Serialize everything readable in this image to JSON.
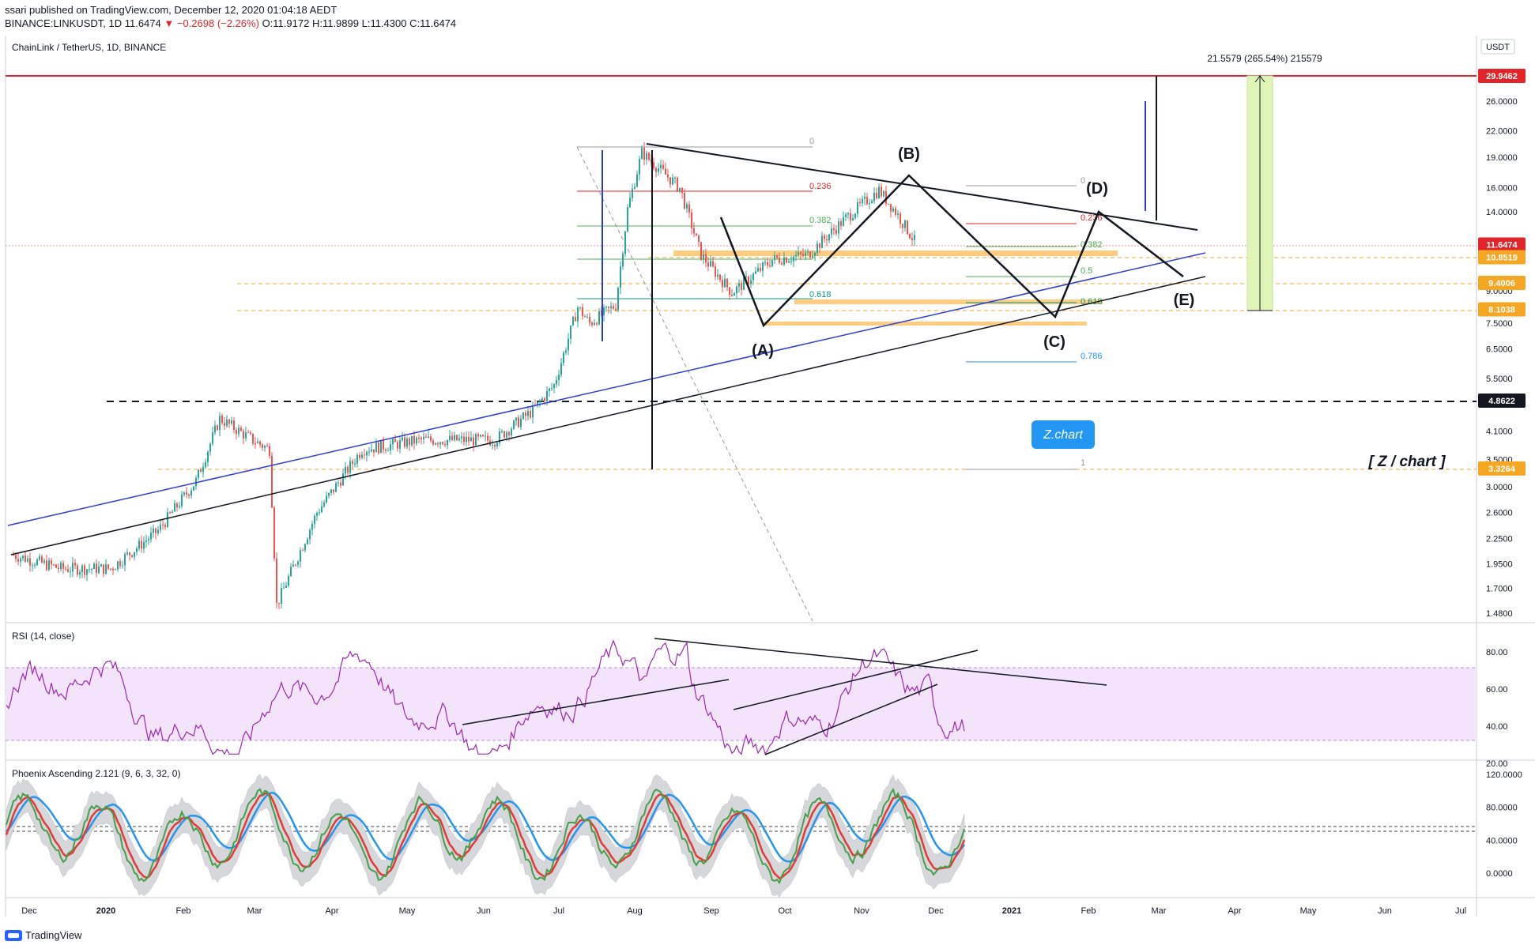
{
  "header": {
    "publisher": "ssari published on TradingView.com, December 12, 2020 01:04:18 AEDT",
    "ticker": "BINANCE:LINKUSDT, 1D",
    "last": "11.6474",
    "change": "▼ −0.2698 (−2.26%)",
    "open": "O:11.9172",
    "high": "H:11.9899",
    "low": "L:11.4300",
    "close": "C:11.6474"
  },
  "main_pane": {
    "title": "ChainLink / TetherUS, 1D, BINANCE",
    "currency": "USDT",
    "measure_label": "21.5579 (265.54%) 215579",
    "zchart_button": "Z.chart",
    "watermark": "[ Z / chart ]",
    "wave_labels": [
      "(A)",
      "(B)",
      "(C)",
      "(D)",
      "(E)"
    ],
    "fib_labels": [
      "0",
      "0.236",
      "0.382",
      "0.5",
      "0.618",
      "1"
    ],
    "fib2_labels": [
      "0",
      "0.236",
      "0.382",
      "0.5",
      "0.618",
      "0.786",
      "1"
    ],
    "price_badges": [
      {
        "value": "29.9462",
        "color": "#e0262a"
      },
      {
        "value": "11.6474",
        "color": "#e0262a"
      },
      {
        "value": "10.8519",
        "color": "#f5a623"
      },
      {
        "value": "9.4006",
        "color": "#f5a623"
      },
      {
        "value": "8.1038",
        "color": "#f5a623"
      },
      {
        "value": "4.8622",
        "color": "#131722"
      },
      {
        "value": "3.3264",
        "color": "#f5a623"
      }
    ]
  },
  "rsi_pane": {
    "title": "RSI (14, close)"
  },
  "phoenix_pane": {
    "title": "Phoenix Ascending 2.121 (9, 6, 3, 32, 0)"
  },
  "chart_data": [
    {
      "type": "line",
      "title": "ChainLink / TetherUS, 1D, BINANCE",
      "series": [
        {
          "name": "",
          "x": [
            "2019-11-25",
            "2019-12-15",
            "2020-01-05",
            "2020-01-25",
            "2020-02-10",
            "2020-02-20",
            "2020-03-05",
            "2020-03-12",
            "2020-03-15",
            "2020-04-01",
            "2020-04-20",
            "2020-05-15",
            "2020-06-15",
            "2020-07-01",
            "2020-07-10",
            "2020-07-20",
            "2020-07-25",
            "2020-08-05",
            "2020-08-10",
            "2020-08-16",
            "2020-09-01",
            "2020-09-10",
            "2020-09-23",
            "2020-10-10",
            "2020-10-25",
            "2020-11-10",
            "2020-11-24",
            "2020-12-01",
            "2020-12-10"
          ],
          "values": [
            2.05,
            1.9,
            1.9,
            2.35,
            3.1,
            4.4,
            3.9,
            3.7,
            1.55,
            2.6,
            3.7,
            3.9,
            3.9,
            4.6,
            5.3,
            8.2,
            7.5,
            8.3,
            14.2,
            19.5,
            16.0,
            11.0,
            8.9,
            10.7,
            11.0,
            13.5,
            15.8,
            14.0,
            11.65
          ]
        }
      ],
      "ylabels": [
        "26.0000",
        "22.0000",
        "19.0000",
        "16.0000",
        "14.0000",
        "11.0000",
        "9.0000",
        "7.5000",
        "6.5000",
        "5.5000",
        "4.1000",
        "3.5000",
        "3.0000",
        "2.6000",
        "2.2500",
        "1.9500",
        "1.7000",
        "1.4800"
      ],
      "xlabels": [
        "Dec",
        "2020",
        "Feb",
        "Mar",
        "Apr",
        "May",
        "Jun",
        "Jul",
        "Aug",
        "Sep",
        "Oct",
        "Nov",
        "Dec",
        "2021",
        "Feb",
        "Mar",
        "Apr",
        "May",
        "Jun",
        "Jul"
      ],
      "yscale": "log"
    },
    {
      "type": "line",
      "title": "RSI (14, close)",
      "ylabels": [
        "80.00",
        "60.00",
        "40.00",
        "20.00"
      ],
      "ylim": [
        20,
        90
      ]
    },
    {
      "type": "line",
      "title": "Phoenix Ascending 2.121 (9, 6, 3, 32, 0)",
      "ylabels": [
        "120.0000",
        "80.0000",
        "40.0000",
        "0.0000"
      ],
      "ylim": [
        -25,
        125
      ]
    }
  ]
}
